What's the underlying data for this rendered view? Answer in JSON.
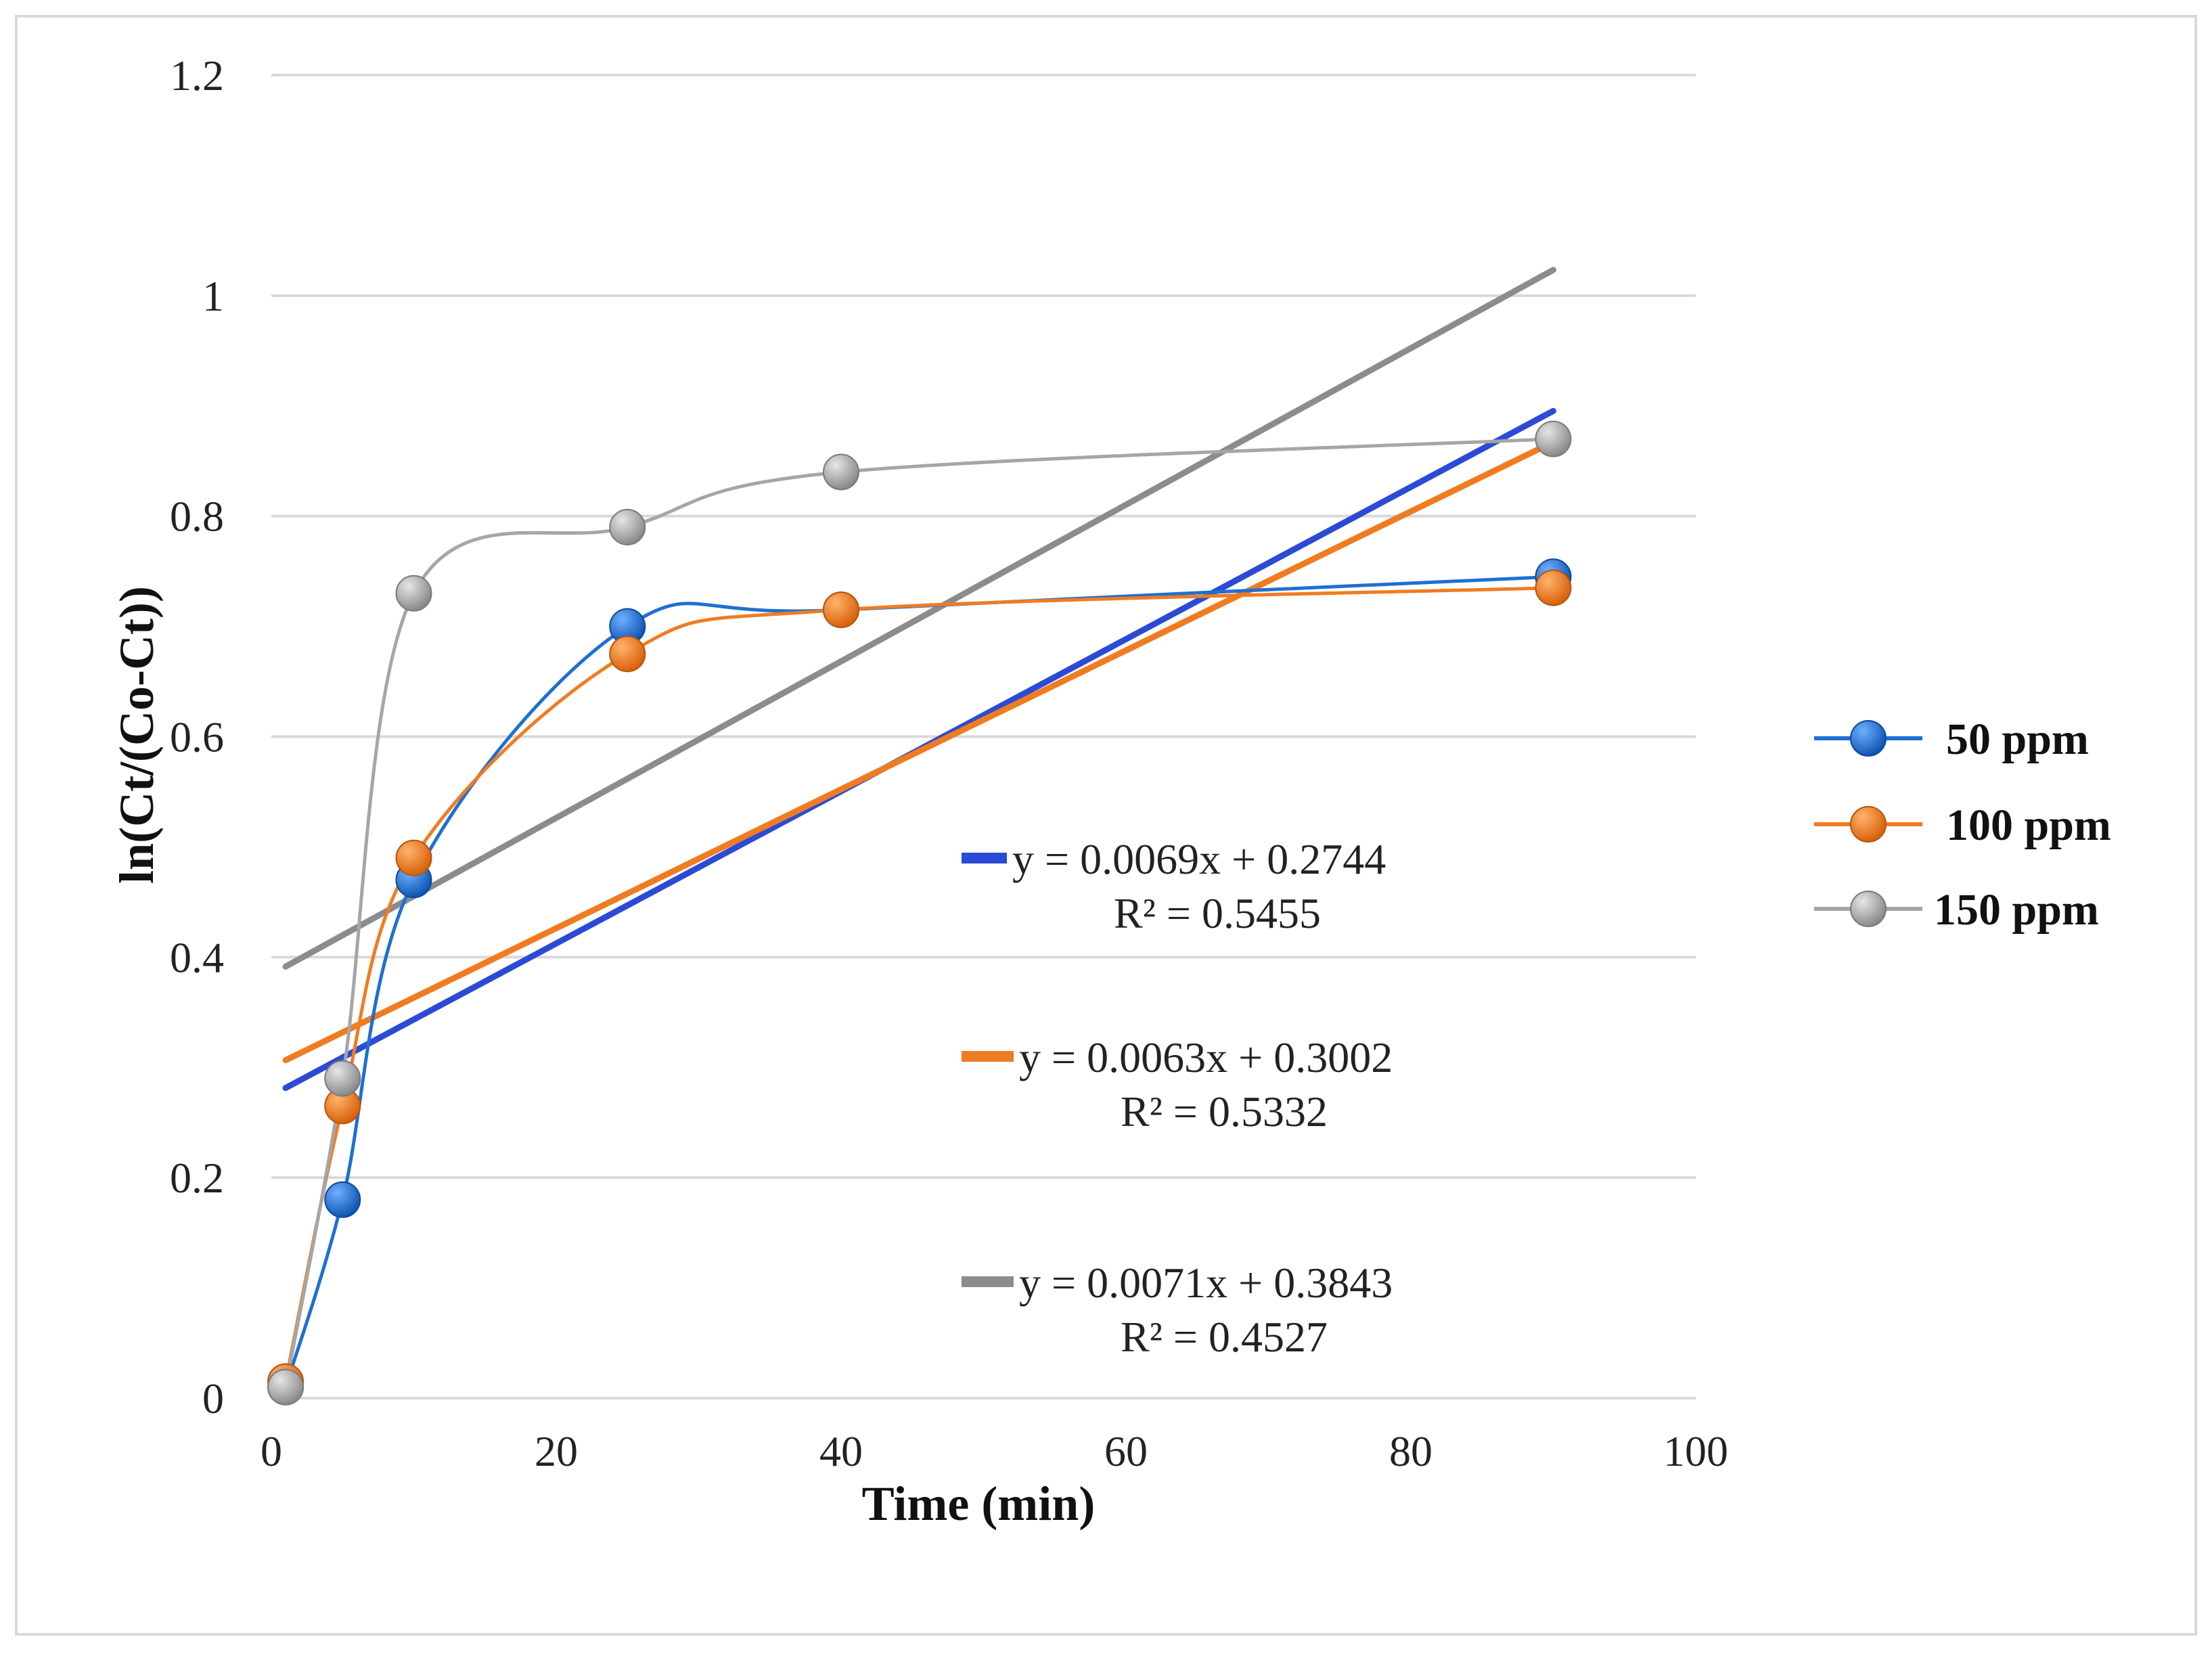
{
  "chart_data": {
    "type": "scatter",
    "title": "",
    "xlabel": "Time (min)",
    "ylabel": "ln(Ct/(Co-Ct))",
    "xlim": [
      0,
      100
    ],
    "ylim": [
      0,
      1.2
    ],
    "xticks": [
      0,
      20,
      40,
      60,
      80,
      100
    ],
    "yticks": [
      0,
      0.2,
      0.4,
      0.6,
      0.8,
      1,
      1.2
    ],
    "xtick_labels": [
      "0",
      "20",
      "40",
      "60",
      "80",
      "100"
    ],
    "ytick_labels": [
      "0",
      "0.2",
      "0.4",
      "0.6",
      "0.8",
      "1",
      "1.2"
    ],
    "grid": true,
    "legend_position": "right",
    "series": [
      {
        "name": "50 ppm",
        "color": "#1f6fd1",
        "x": [
          1,
          5,
          10,
          25,
          40,
          90
        ],
        "y": [
          0.01,
          0.18,
          0.47,
          0.7,
          0.715,
          0.745
        ],
        "trendline": {
          "slope": 0.0069,
          "intercept": 0.2744,
          "equation": "y = 0.0069x + 0.2744",
          "r2": "R² = 0.5455",
          "color": "#2b4bd6"
        }
      },
      {
        "name": "100 ppm",
        "color": "#f07c22",
        "x": [
          1,
          5,
          10,
          25,
          40,
          90
        ],
        "y": [
          0.015,
          0.265,
          0.49,
          0.675,
          0.715,
          0.735
        ],
        "trendline": {
          "slope": 0.0063,
          "intercept": 0.3002,
          "equation": "y = 0.0063x + 0.3002",
          "r2": "R² = 0.5332",
          "color": "#f07c22"
        }
      },
      {
        "name": "150 ppm",
        "color": "#a6a6a6",
        "x": [
          1,
          5,
          10,
          25,
          40,
          90
        ],
        "y": [
          0.01,
          0.29,
          0.73,
          0.79,
          0.84,
          0.87
        ],
        "trendline": {
          "slope": 0.0071,
          "intercept": 0.3843,
          "equation": "y = 0.0071x + 0.3843",
          "r2": "R² = 0.4527",
          "color": "#8c8c8c"
        }
      }
    ]
  }
}
